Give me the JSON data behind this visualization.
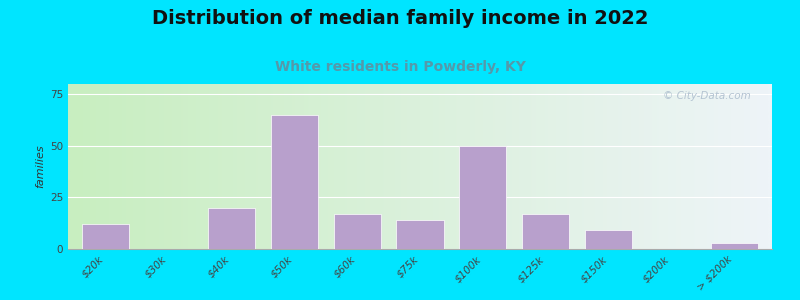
{
  "title": "Distribution of median family income in 2022",
  "subtitle": "White residents in Powderly, KY",
  "ylabel": "families",
  "categories": [
    "$20k",
    "$30k",
    "$40k",
    "$50k",
    "$60k",
    "$75k",
    "$100k",
    "$125k",
    "$150k",
    "$200k",
    "> $200k"
  ],
  "values": [
    12,
    0,
    20,
    65,
    17,
    14,
    50,
    17,
    9,
    0,
    3
  ],
  "bar_color": "#b8a0cc",
  "bar_edge_color": "#ffffff",
  "bg_left_color": "#c8eec0",
  "bg_right_color": "#eef4f8",
  "outer_background": "#00e5ff",
  "title_fontsize": 14,
  "subtitle_fontsize": 10,
  "subtitle_color": "#5599aa",
  "ylabel_fontsize": 8,
  "tick_fontsize": 7.5,
  "yticks": [
    0,
    25,
    50,
    75
  ],
  "ylim": [
    0,
    80
  ],
  "watermark": "© City-Data.com",
  "watermark_color": "#aabbcc"
}
